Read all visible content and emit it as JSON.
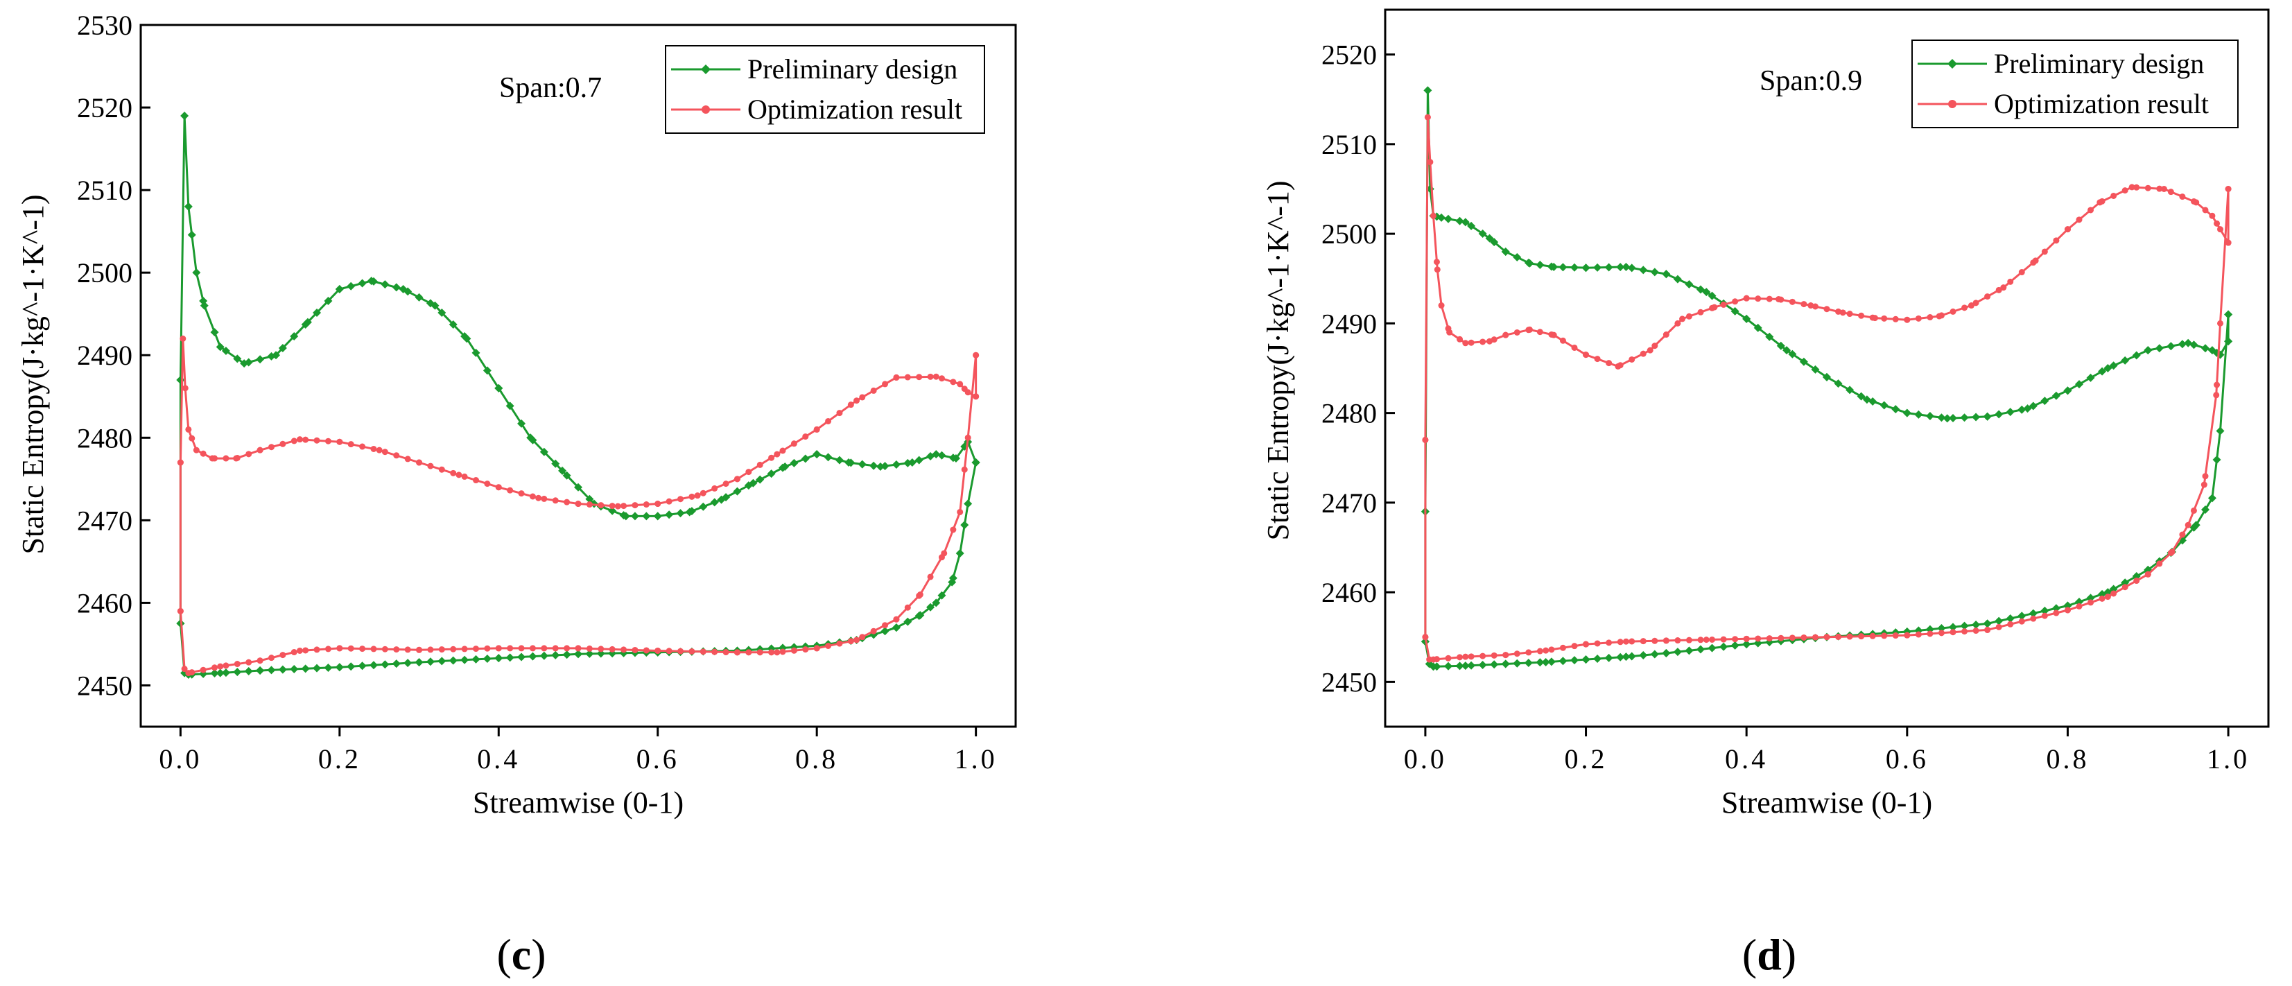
{
  "colors": {
    "preliminary": "#1a9a2e",
    "optimization": "#f4545c",
    "axis": "#000000"
  },
  "chart_data": [
    {
      "type": "line",
      "panel": "c",
      "panel_label": "c",
      "annotation": "Span:0.7",
      "xlabel": "Streamwise (0-1)",
      "ylabel": "Static Entropy(J·kg^-1·K^-1)",
      "xlim": [
        -0.05,
        1.05
      ],
      "ylim": [
        2445,
        2530
      ],
      "xticks": [
        0.0,
        0.2,
        0.4,
        0.6,
        0.8,
        1.0
      ],
      "xtick_labels": [
        "0.0",
        "0.2",
        "0.4",
        "0.6",
        "0.8",
        "1.0"
      ],
      "yticks": [
        2450,
        2460,
        2470,
        2480,
        2490,
        2500,
        2510,
        2520,
        2530
      ],
      "ytick_labels": [
        "2450",
        "2460",
        "2470",
        "2480",
        "2490",
        "2500",
        "2510",
        "2520",
        "2530"
      ],
      "legend": [
        "Preliminary design",
        "Optimization result"
      ],
      "series": [
        {
          "name": "Preliminary design",
          "color": "preliminary",
          "marker": "diamond",
          "upper": {
            "x": [
              0.0,
              0.005,
              0.01,
              0.02,
              0.03,
              0.05,
              0.08,
              0.12,
              0.16,
              0.2,
              0.24,
              0.28,
              0.32,
              0.36,
              0.4,
              0.44,
              0.48,
              0.52,
              0.56,
              0.6,
              0.64,
              0.68,
              0.72,
              0.76,
              0.8,
              0.84,
              0.88,
              0.92,
              0.95,
              0.975,
              0.99,
              1.0
            ],
            "y": [
              2487,
              2519,
              2508,
              2500,
              2496,
              2491,
              2489,
              2490,
              2494,
              2498,
              2499,
              2498,
              2496,
              2492,
              2486,
              2480,
              2476,
              2472,
              2470.5,
              2470.5,
              2471,
              2472.5,
              2474.5,
              2476.5,
              2478,
              2477,
              2476.5,
              2477,
              2478,
              2477.5,
              2479.5,
              2477
            ]
          },
          "lower": {
            "x": [
              0.0,
              0.005,
              0.01,
              0.05,
              0.1,
              0.2,
              0.3,
              0.4,
              0.5,
              0.6,
              0.7,
              0.8,
              0.85,
              0.9,
              0.93,
              0.95,
              0.97,
              0.98,
              0.99,
              1.0
            ],
            "y": [
              2457.5,
              2451.5,
              2451.3,
              2451.5,
              2451.8,
              2452.2,
              2452.8,
              2453.3,
              2453.8,
              2454,
              2454.2,
              2454.8,
              2455.5,
              2457,
              2458.5,
              2460,
              2462.5,
              2466,
              2472,
              2477
            ]
          }
        },
        {
          "name": "Optimization result",
          "color": "optimization",
          "marker": "circle",
          "upper": {
            "x": [
              0.0,
              0.003,
              0.006,
              0.01,
              0.02,
              0.04,
              0.07,
              0.1,
              0.15,
              0.2,
              0.25,
              0.3,
              0.35,
              0.4,
              0.45,
              0.5,
              0.55,
              0.6,
              0.65,
              0.7,
              0.75,
              0.8,
              0.85,
              0.9,
              0.95,
              0.98,
              0.99,
              1.0
            ],
            "y": [
              2477,
              2492,
              2486,
              2481,
              2478.5,
              2477.5,
              2477.5,
              2478.5,
              2479.8,
              2479.5,
              2478.5,
              2477,
              2475.5,
              2474,
              2472.7,
              2472,
              2471.7,
              2472,
              2473,
              2475,
              2478,
              2481,
              2484.5,
              2487.3,
              2487.4,
              2486.5,
              2485.5,
              2485
            ]
          },
          "lower": {
            "x": [
              0.0,
              0.005,
              0.01,
              0.05,
              0.1,
              0.15,
              0.2,
              0.3,
              0.4,
              0.5,
              0.6,
              0.7,
              0.75,
              0.8,
              0.85,
              0.9,
              0.93,
              0.96,
              0.98,
              0.99,
              1.0
            ],
            "y": [
              2459,
              2452,
              2451.5,
              2452.3,
              2453,
              2454.2,
              2454.5,
              2454.3,
              2454.5,
              2454.5,
              2454.2,
              2454,
              2454,
              2454.5,
              2455.5,
              2458,
              2461,
              2466,
              2471,
              2480,
              2490
            ]
          }
        }
      ]
    },
    {
      "type": "line",
      "panel": "d",
      "panel_label": "d",
      "annotation": "Span:0.9",
      "xlabel": "Streamwise (0-1)",
      "ylabel": "Static Entropy(J·kg^-1·K^-1)",
      "xlim": [
        -0.05,
        1.05
      ],
      "ylim": [
        2445,
        2525
      ],
      "xticks": [
        0.0,
        0.2,
        0.4,
        0.6,
        0.8,
        1.0
      ],
      "xtick_labels": [
        "0.0",
        "0.2",
        "0.4",
        "0.6",
        "0.8",
        "1.0"
      ],
      "yticks": [
        2450,
        2460,
        2470,
        2480,
        2490,
        2500,
        2510,
        2520
      ],
      "ytick_labels": [
        "2450",
        "2460",
        "2470",
        "2480",
        "2490",
        "2500",
        "2510",
        "2520"
      ],
      "legend": [
        "Preliminary design",
        "Optimization result"
      ],
      "series": [
        {
          "name": "Preliminary design",
          "color": "preliminary",
          "marker": "diamond",
          "upper": {
            "x": [
              0.0,
              0.003,
              0.006,
              0.01,
              0.02,
              0.05,
              0.08,
              0.1,
              0.13,
              0.16,
              0.2,
              0.25,
              0.3,
              0.35,
              0.4,
              0.45,
              0.5,
              0.55,
              0.6,
              0.65,
              0.7,
              0.75,
              0.8,
              0.85,
              0.9,
              0.95,
              0.98,
              0.99,
              1.0
            ],
            "y": [
              2469,
              2516,
              2505,
              2502,
              2501.8,
              2501.3,
              2499.5,
              2498,
              2496.7,
              2496.3,
              2496.2,
              2496.3,
              2495.5,
              2493.5,
              2490.5,
              2487,
              2484,
              2481.5,
              2480,
              2479.4,
              2479.6,
              2480.5,
              2482.5,
              2485,
              2487,
              2487.8,
              2487,
              2486.5,
              2488
            ]
          },
          "lower": {
            "x": [
              0.0,
              0.005,
              0.01,
              0.05,
              0.1,
              0.15,
              0.2,
              0.25,
              0.3,
              0.4,
              0.5,
              0.6,
              0.7,
              0.8,
              0.85,
              0.9,
              0.93,
              0.96,
              0.98,
              0.99,
              1.0
            ],
            "y": [
              2454.5,
              2452,
              2451.7,
              2451.8,
              2452,
              2452.2,
              2452.5,
              2452.8,
              2453.2,
              2454.2,
              2455,
              2455.6,
              2456.5,
              2458.5,
              2460,
              2462.5,
              2464.5,
              2467.5,
              2470.5,
              2478,
              2491
            ]
          }
        },
        {
          "name": "Optimization result",
          "color": "optimization",
          "marker": "circle",
          "upper": {
            "x": [
              0.0,
              0.003,
              0.006,
              0.01,
              0.015,
              0.02,
              0.03,
              0.05,
              0.08,
              0.1,
              0.13,
              0.16,
              0.2,
              0.24,
              0.28,
              0.32,
              0.36,
              0.4,
              0.44,
              0.48,
              0.52,
              0.56,
              0.6,
              0.64,
              0.68,
              0.72,
              0.76,
              0.8,
              0.84,
              0.88,
              0.92,
              0.96,
              0.98,
              0.99,
              1.0
            ],
            "y": [
              2477,
              2513,
              2508,
              2502,
              2496,
              2492,
              2489,
              2487.8,
              2488,
              2488.7,
              2489.3,
              2488.7,
              2486.5,
              2485.2,
              2487,
              2490.5,
              2491.8,
              2492.8,
              2492.7,
              2492,
              2491.2,
              2490.6,
              2490.4,
              2490.8,
              2492,
              2494,
              2497,
              2500.5,
              2503.5,
              2505.2,
              2505,
              2503.5,
              2502,
              2500.5,
              2499
            ]
          },
          "lower": {
            "x": [
              0.0,
              0.005,
              0.01,
              0.05,
              0.1,
              0.15,
              0.2,
              0.25,
              0.3,
              0.35,
              0.4,
              0.5,
              0.6,
              0.7,
              0.8,
              0.85,
              0.9,
              0.93,
              0.95,
              0.97,
              0.985,
              0.99,
              1.0
            ],
            "y": [
              2455,
              2452.5,
              2452.5,
              2452.8,
              2453,
              2453.5,
              2454.2,
              2454.5,
              2454.6,
              2454.7,
              2454.8,
              2455,
              2455.2,
              2455.8,
              2458,
              2459.5,
              2462,
              2464.5,
              2467.5,
              2472,
              2482,
              2490,
              2505
            ]
          }
        }
      ]
    }
  ]
}
